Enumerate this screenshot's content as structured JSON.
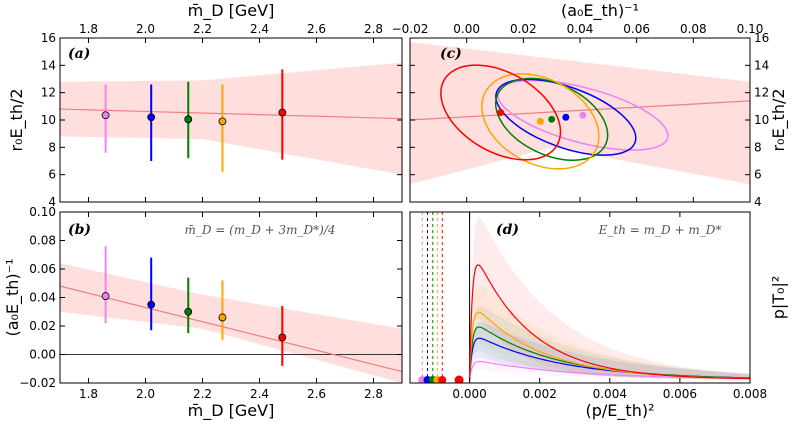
{
  "chart_data": [
    {
      "panel": "a",
      "type": "scatter",
      "tag": "(a)",
      "xlabel": "m̄_D [GeV]",
      "ylabel": "r₀E_th/2",
      "xlim": [
        1.7,
        2.9
      ],
      "ylim": [
        4,
        16
      ],
      "xticks": [
        1.8,
        2.0,
        2.2,
        2.4,
        2.6,
        2.8
      ],
      "yticks": [
        4,
        6,
        8,
        10,
        12,
        14,
        16
      ],
      "xtick_labels": [
        "1.8",
        "2.0",
        "2.2",
        "2.4",
        "2.6",
        "2.8"
      ],
      "ytick_labels": [
        "4",
        "6",
        "8",
        "10",
        "12",
        "14",
        "16"
      ],
      "fit": {
        "line": [
          [
            1.7,
            10.8
          ],
          [
            2.9,
            10.1
          ]
        ],
        "band_upper": [
          [
            1.7,
            12.8
          ],
          [
            2.2,
            12.9
          ],
          [
            2.9,
            14.2
          ]
        ],
        "band_lower": [
          [
            1.7,
            8.8
          ],
          [
            2.2,
            8.6
          ],
          [
            2.9,
            6.0
          ]
        ]
      },
      "points": [
        {
          "x": 1.86,
          "y": 10.35,
          "ylo": 7.6,
          "yhi": 12.6,
          "color": "#ee82ee"
        },
        {
          "x": 2.02,
          "y": 10.2,
          "ylo": 7.0,
          "yhi": 12.6,
          "color": "#0000ff"
        },
        {
          "x": 2.15,
          "y": 10.05,
          "ylo": 7.2,
          "yhi": 12.8,
          "color": "#008000"
        },
        {
          "x": 2.27,
          "y": 9.9,
          "ylo": 6.2,
          "yhi": 12.6,
          "color": "#ffa500"
        },
        {
          "x": 2.48,
          "y": 10.55,
          "ylo": 7.1,
          "yhi": 13.7,
          "color": "#ff0000"
        }
      ]
    },
    {
      "panel": "b",
      "type": "scatter",
      "tag": "(b)",
      "annotation": "m̄_D = (m_D + 3m_D*)/4",
      "xlabel": "m̄_D [GeV]",
      "ylabel": "(a₀E_th)⁻¹",
      "xlim": [
        1.7,
        2.9
      ],
      "ylim": [
        -0.02,
        0.1
      ],
      "xticks": [
        1.8,
        2.0,
        2.2,
        2.4,
        2.6,
        2.8
      ],
      "yticks": [
        -0.02,
        0.0,
        0.02,
        0.04,
        0.06,
        0.08,
        0.1
      ],
      "xtick_labels": [
        "1.8",
        "2.0",
        "2.2",
        "2.4",
        "2.6",
        "2.8"
      ],
      "ytick_labels": [
        "−0.02",
        "0.00",
        "0.02",
        "0.04",
        "0.06",
        "0.08",
        "0.10"
      ],
      "hline": 0,
      "fit": {
        "line": [
          [
            1.7,
            0.048
          ],
          [
            2.9,
            -0.012
          ]
        ],
        "band_upper": [
          [
            1.7,
            0.064
          ],
          [
            2.2,
            0.042
          ],
          [
            2.9,
            0.018
          ]
        ],
        "band_lower": [
          [
            1.7,
            0.03
          ],
          [
            2.2,
            0.018
          ],
          [
            2.9,
            -0.02
          ]
        ]
      },
      "points": [
        {
          "x": 1.86,
          "y": 0.041,
          "ylo": 0.022,
          "yhi": 0.076,
          "color": "#ee82ee"
        },
        {
          "x": 2.02,
          "y": 0.035,
          "ylo": 0.017,
          "yhi": 0.068,
          "color": "#0000ff"
        },
        {
          "x": 2.15,
          "y": 0.03,
          "ylo": 0.015,
          "yhi": 0.054,
          "color": "#008000"
        },
        {
          "x": 2.27,
          "y": 0.026,
          "ylo": 0.01,
          "yhi": 0.052,
          "color": "#ffa500"
        },
        {
          "x": 2.48,
          "y": 0.012,
          "ylo": -0.008,
          "yhi": 0.034,
          "color": "#ff0000"
        }
      ]
    },
    {
      "panel": "c",
      "type": "scatter",
      "tag": "(c)",
      "xlabel": "(a₀E_th)⁻¹",
      "ylabel": "r₀E_th/2",
      "xlim": [
        -0.02,
        0.1
      ],
      "ylim": [
        4,
        16
      ],
      "xticks": [
        -0.02,
        0.0,
        0.02,
        0.04,
        0.06,
        0.08,
        0.1
      ],
      "yticks": [
        4,
        6,
        8,
        10,
        12,
        14,
        16
      ],
      "xtick_labels": [
        "−0.02",
        "0.00",
        "0.02",
        "0.04",
        "0.06",
        "0.08",
        "0.10"
      ],
      "ytick_labels": [
        "4",
        "6",
        "8",
        "10",
        "12",
        "14",
        "16"
      ],
      "fit": {
        "line": [
          [
            -0.02,
            10.0
          ],
          [
            0.1,
            11.4
          ]
        ],
        "band_upper": [
          [
            -0.02,
            15.7
          ],
          [
            0.03,
            14.5
          ],
          [
            0.1,
            12.8
          ]
        ],
        "band_lower": [
          [
            -0.02,
            5.3
          ],
          [
            0.03,
            8.0
          ],
          [
            0.1,
            5.3
          ]
        ]
      },
      "points": [
        {
          "x": 0.041,
          "y": 10.35,
          "color": "#ee82ee",
          "ellipse": {
            "rx": 0.031,
            "ry": 2.0,
            "angle": 15
          }
        },
        {
          "x": 0.035,
          "y": 10.2,
          "color": "#0000ff",
          "ellipse": {
            "rx": 0.026,
            "ry": 2.2,
            "angle": 20
          }
        },
        {
          "x": 0.03,
          "y": 10.05,
          "color": "#008000",
          "ellipse": {
            "rx": 0.021,
            "ry": 2.6,
            "angle": 25
          }
        },
        {
          "x": 0.026,
          "y": 9.9,
          "color": "#ffa500",
          "ellipse": {
            "rx": 0.022,
            "ry": 3.1,
            "angle": 28
          }
        },
        {
          "x": 0.012,
          "y": 10.55,
          "color": "#ff0000",
          "ellipse": {
            "rx": 0.023,
            "ry": 2.9,
            "angle": 30
          }
        }
      ]
    },
    {
      "panel": "d",
      "type": "line",
      "tag": "(d)",
      "annotation": "E_th = m_D + m_D*",
      "xlabel": "(p/E_th)²",
      "ylabel": "p|T₀|²",
      "xlim": [
        -0.0017,
        0.008
      ],
      "ylim": [
        0,
        1
      ],
      "xticks": [
        0.0,
        0.002,
        0.004,
        0.006,
        0.008
      ],
      "xtick_labels": [
        "0.000",
        "0.002",
        "0.004",
        "0.006",
        "0.008"
      ],
      "vline": 0,
      "thresholds": [
        {
          "x": -0.00135,
          "color": "#ee82ee"
        },
        {
          "x": -0.0012,
          "color": "#0000ff"
        },
        {
          "x": -0.00105,
          "color": "#008000"
        },
        {
          "x": -0.00092,
          "color": "#ffa500"
        },
        {
          "x": -0.00078,
          "color": "#ff0000"
        }
      ],
      "series": [
        {
          "name": "violet",
          "color": "#ee82ee",
          "peak": 0.12,
          "decay": 0.0028
        },
        {
          "name": "blue",
          "color": "#0000ff",
          "peak": 0.28,
          "decay": 0.0024
        },
        {
          "name": "green",
          "color": "#008000",
          "peak": 0.36,
          "decay": 0.0022
        },
        {
          "name": "orange",
          "color": "#ffa500",
          "peak": 0.47,
          "decay": 0.0019
        },
        {
          "name": "red",
          "color": "#ff0000",
          "peak": 0.82,
          "decay": 0.0016
        }
      ]
    }
  ]
}
